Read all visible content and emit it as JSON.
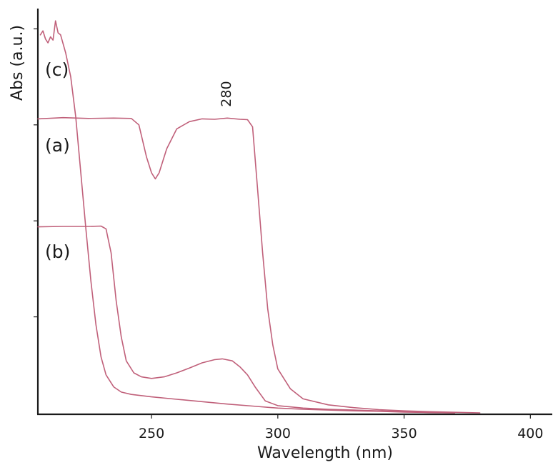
{
  "chart_data": {
    "type": "line",
    "title": "",
    "xlabel": "Wavelength (nm)",
    "ylabel": "Abs (a.u.)",
    "xlim": [
      205,
      405
    ],
    "ylim": [
      0,
      1
    ],
    "x_ticks": [
      250,
      300,
      350,
      400
    ],
    "y_ticks_labeled": false,
    "y_ticks": [
      0.24,
      0.48,
      0.72,
      0.96
    ],
    "grid": false,
    "legend": "none",
    "line_color": "#c0607a",
    "series": [
      {
        "name": "(a)",
        "points": [
          [
            205,
            0.735
          ],
          [
            215,
            0.738
          ],
          [
            225,
            0.736
          ],
          [
            235,
            0.737
          ],
          [
            242,
            0.736
          ],
          [
            245,
            0.72
          ],
          [
            248,
            0.64
          ],
          [
            250,
            0.6
          ],
          [
            251.5,
            0.585
          ],
          [
            253,
            0.6
          ],
          [
            256,
            0.66
          ],
          [
            260,
            0.71
          ],
          [
            265,
            0.728
          ],
          [
            270,
            0.735
          ],
          [
            275,
            0.734
          ],
          [
            280,
            0.737
          ],
          [
            285,
            0.734
          ],
          [
            288,
            0.733
          ],
          [
            290,
            0.715
          ],
          [
            292,
            0.56
          ],
          [
            294,
            0.4
          ],
          [
            296,
            0.26
          ],
          [
            298,
            0.17
          ],
          [
            300,
            0.11
          ],
          [
            305,
            0.06
          ],
          [
            310,
            0.035
          ],
          [
            320,
            0.02
          ],
          [
            330,
            0.013
          ],
          [
            340,
            0.008
          ],
          [
            350,
            0.005
          ],
          [
            360,
            0.003
          ],
          [
            370,
            0.0015
          ],
          [
            380,
            0.0
          ]
        ]
      },
      {
        "name": "(b)",
        "points": [
          [
            205,
            0.465
          ],
          [
            215,
            0.466
          ],
          [
            225,
            0.466
          ],
          [
            230,
            0.467
          ],
          [
            232,
            0.46
          ],
          [
            234,
            0.4
          ],
          [
            236,
            0.28
          ],
          [
            238,
            0.19
          ],
          [
            240,
            0.13
          ],
          [
            243,
            0.1
          ],
          [
            246,
            0.09
          ],
          [
            250,
            0.086
          ],
          [
            255,
            0.09
          ],
          [
            260,
            0.1
          ],
          [
            265,
            0.112
          ],
          [
            270,
            0.125
          ],
          [
            275,
            0.133
          ],
          [
            278,
            0.135
          ],
          [
            282,
            0.13
          ],
          [
            285,
            0.115
          ],
          [
            288,
            0.095
          ],
          [
            291,
            0.065
          ],
          [
            295,
            0.03
          ],
          [
            300,
            0.018
          ],
          [
            310,
            0.012
          ],
          [
            320,
            0.009
          ],
          [
            330,
            0.007
          ],
          [
            340,
            0.005
          ],
          [
            350,
            0.003
          ],
          [
            360,
            0.001
          ],
          [
            370,
            0.0
          ]
        ]
      },
      {
        "name": "(c)",
        "points": [
          [
            206,
            0.945
          ],
          [
            207,
            0.955
          ],
          [
            208,
            0.935
          ],
          [
            209,
            0.925
          ],
          [
            210,
            0.94
          ],
          [
            211,
            0.932
          ],
          [
            212,
            0.98
          ],
          [
            213,
            0.95
          ],
          [
            214,
            0.945
          ],
          [
            216,
            0.9
          ],
          [
            218,
            0.84
          ],
          [
            220,
            0.74
          ],
          [
            222,
            0.6
          ],
          [
            224,
            0.46
          ],
          [
            226,
            0.33
          ],
          [
            228,
            0.22
          ],
          [
            230,
            0.14
          ],
          [
            232,
            0.095
          ],
          [
            235,
            0.065
          ],
          [
            238,
            0.052
          ],
          [
            242,
            0.046
          ],
          [
            250,
            0.04
          ],
          [
            260,
            0.034
          ],
          [
            270,
            0.028
          ],
          [
            280,
            0.022
          ],
          [
            290,
            0.017
          ],
          [
            300,
            0.012
          ],
          [
            310,
            0.009
          ],
          [
            320,
            0.007
          ],
          [
            330,
            0.005
          ],
          [
            340,
            0.004
          ],
          [
            350,
            0.002
          ],
          [
            360,
            0.001
          ],
          [
            370,
            0.0
          ]
        ]
      }
    ],
    "annotations": [
      {
        "text": "280",
        "x": 280,
        "y": 0.765,
        "rotation": -90
      }
    ]
  }
}
